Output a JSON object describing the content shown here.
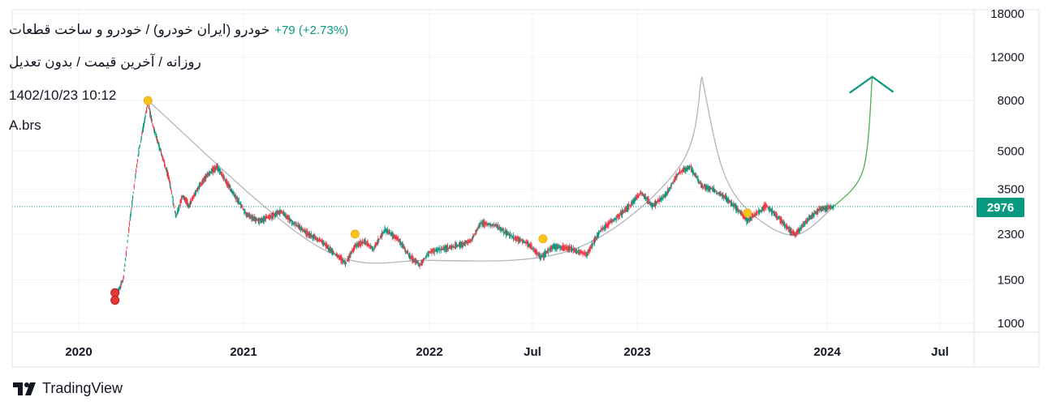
{
  "header": {
    "title": "خودرو (ایران خودرو) / خودرو و ساخت قطعات",
    "change": "+79 (+2.73%)",
    "subtitle": "روزانه / آخرین قیمت / بدون تعدیل",
    "timestamp": "1402/10/23 10:12",
    "author": "A.brs"
  },
  "price_label": "2976",
  "brand": {
    "name": "TradingView"
  },
  "colors": {
    "up": "#089981",
    "down": "#f23645",
    "curve": "#b2b5be",
    "projection": "#4caf50",
    "arrow": "#089981",
    "marker_yellow": "#f5c518",
    "marker_red": "#e53935"
  },
  "chart_data": {
    "type": "candlestick",
    "y_scale": "log",
    "ylim": [
      900,
      18000
    ],
    "y_ticks": [
      1000,
      1500,
      2300,
      3500,
      5000,
      8000,
      12000,
      18000
    ],
    "x_ticks": [
      {
        "label": "2020",
        "t": 2020.0
      },
      {
        "label": "2021",
        "t": 2021.0
      },
      {
        "label": "2022",
        "t": 2022.0
      },
      {
        "label": "Jul",
        "t": 2022.5
      },
      {
        "label": "2023",
        "t": 2023.0
      },
      {
        "label": "2024",
        "t": 2024.0
      },
      {
        "label": "Jul",
        "t": 2024.5
      }
    ],
    "last_price": 2976,
    "price_path": [
      [
        2020.22,
        1250
      ],
      [
        2020.27,
        1500
      ],
      [
        2020.31,
        2600
      ],
      [
        2020.36,
        4800
      ],
      [
        2020.42,
        7900
      ],
      [
        2020.45,
        6300
      ],
      [
        2020.49,
        5200
      ],
      [
        2020.55,
        3800
      ],
      [
        2020.59,
        2700
      ],
      [
        2020.63,
        3300
      ],
      [
        2020.67,
        3000
      ],
      [
        2020.72,
        3500
      ],
      [
        2020.78,
        4000
      ],
      [
        2020.84,
        4300
      ],
      [
        2020.9,
        3700
      ],
      [
        2020.96,
        3200
      ],
      [
        2021.02,
        2750
      ],
      [
        2021.08,
        2600
      ],
      [
        2021.14,
        2700
      ],
      [
        2021.2,
        2850
      ],
      [
        2021.27,
        2550
      ],
      [
        2021.35,
        2300
      ],
      [
        2021.42,
        2150
      ],
      [
        2021.48,
        1950
      ],
      [
        2021.55,
        1750
      ],
      [
        2021.6,
        2050
      ],
      [
        2021.65,
        2150
      ],
      [
        2021.7,
        2000
      ],
      [
        2021.76,
        2400
      ],
      [
        2021.83,
        2200
      ],
      [
        2021.9,
        1850
      ],
      [
        2021.95,
        1720
      ],
      [
        2022.0,
        1950
      ],
      [
        2022.06,
        2000
      ],
      [
        2022.12,
        2050
      ],
      [
        2022.2,
        2150
      ],
      [
        2022.25,
        2550
      ],
      [
        2022.32,
        2500
      ],
      [
        2022.4,
        2250
      ],
      [
        2022.48,
        2100
      ],
      [
        2022.54,
        1850
      ],
      [
        2022.6,
        2050
      ],
      [
        2022.68,
        2000
      ],
      [
        2022.76,
        1900
      ],
      [
        2022.82,
        2350
      ],
      [
        2022.88,
        2600
      ],
      [
        2022.95,
        2900
      ],
      [
        2023.02,
        3400
      ],
      [
        2023.08,
        3000
      ],
      [
        2023.15,
        3300
      ],
      [
        2023.22,
        4100
      ],
      [
        2023.28,
        4300
      ],
      [
        2023.34,
        3600
      ],
      [
        2023.4,
        3500
      ],
      [
        2023.47,
        3200
      ],
      [
        2023.53,
        2900
      ],
      [
        2023.58,
        2600
      ],
      [
        2023.63,
        2800
      ],
      [
        2023.68,
        3000
      ],
      [
        2023.74,
        2700
      ],
      [
        2023.79,
        2450
      ],
      [
        2023.83,
        2280
      ],
      [
        2023.9,
        2650
      ],
      [
        2023.96,
        2900
      ],
      [
        2024.03,
        2976
      ]
    ],
    "annotations": {
      "cup_curve": [
        [
          2020.42,
          8000
        ],
        [
          2021.4,
          2050
        ],
        [
          2022.0,
          1800
        ],
        [
          2022.7,
          2000
        ],
        [
          2023.22,
          4300
        ],
        [
          2023.34,
          10000
        ],
        [
          2023.45,
          4200
        ],
        [
          2023.6,
          2800
        ],
        [
          2023.83,
          2280
        ],
        [
          2024.03,
          2976
        ]
      ],
      "projection": [
        [
          2024.03,
          2976
        ],
        [
          2024.16,
          4200
        ],
        [
          2024.2,
          10000
        ]
      ],
      "arrow_tip": [
        2024.2,
        10000
      ],
      "yellow_markers": [
        [
          2020.42,
          8000
        ],
        [
          2021.6,
          2300
        ],
        [
          2022.55,
          2200
        ],
        [
          2023.58,
          2800
        ]
      ],
      "red_markers": [
        [
          2020.22,
          1330
        ],
        [
          2020.22,
          1240
        ]
      ]
    }
  }
}
